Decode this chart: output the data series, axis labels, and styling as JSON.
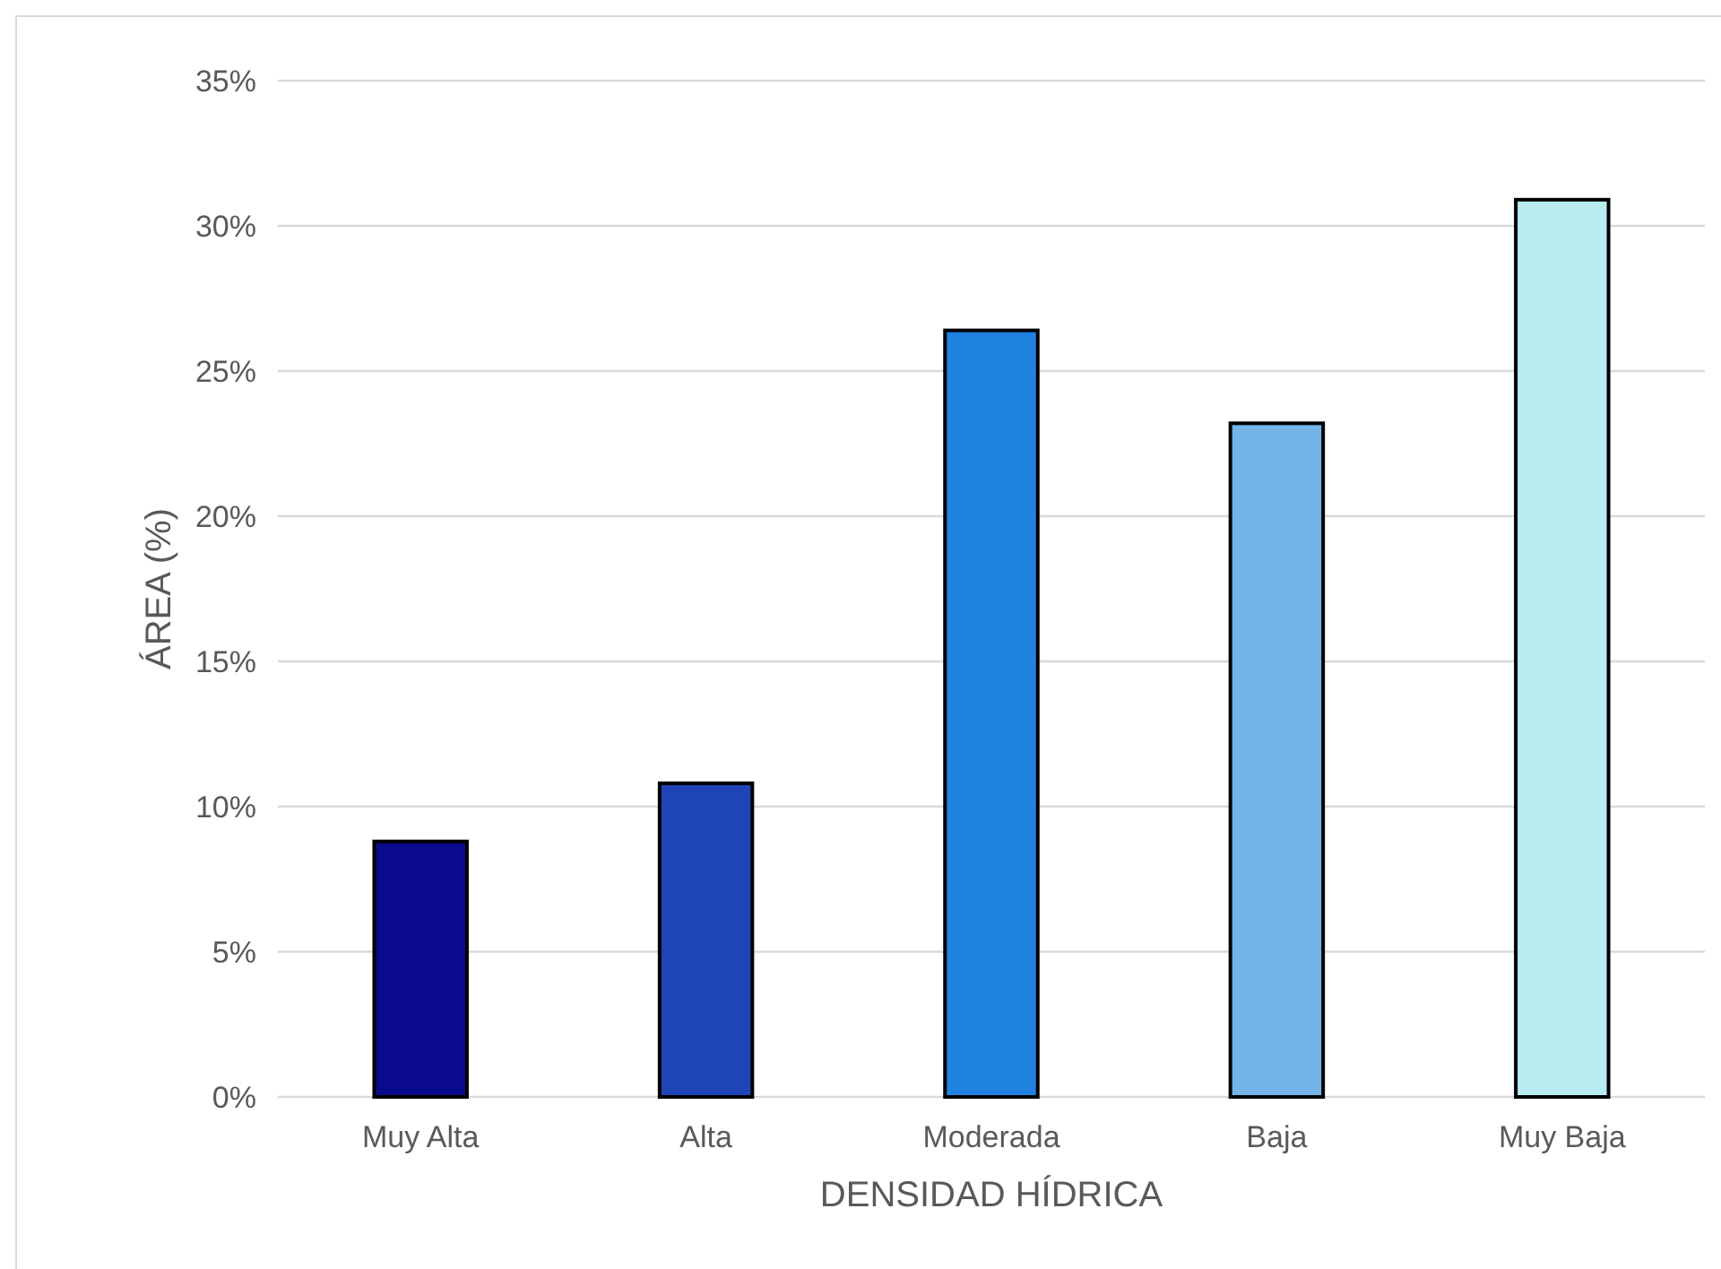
{
  "chart_data": {
    "type": "bar",
    "xlabel": "DENSIDAD HÍDRICA",
    "ylabel": "ÁREA (%)",
    "categories": [
      "Muy Alta",
      "Alta",
      "Moderada",
      "Baja",
      "Muy Baja"
    ],
    "values": [
      8.8,
      10.8,
      26.4,
      23.2,
      30.9
    ],
    "colors": [
      "#0a0a8c",
      "#1e44b8",
      "#1f82e0",
      "#74b3e8",
      "#b7ecf0"
    ],
    "ylim": [
      0,
      35
    ],
    "yticks": [
      {
        "value": 0,
        "label": "0%"
      },
      {
        "value": 5,
        "label": "5%"
      },
      {
        "value": 10,
        "label": "10%"
      },
      {
        "value": 15,
        "label": "15%"
      },
      {
        "value": 20,
        "label": "20%"
      },
      {
        "value": 25,
        "label": "25%"
      },
      {
        "value": 30,
        "label": "30%"
      },
      {
        "value": 35,
        "label": "35%"
      }
    ],
    "grid": "y"
  }
}
